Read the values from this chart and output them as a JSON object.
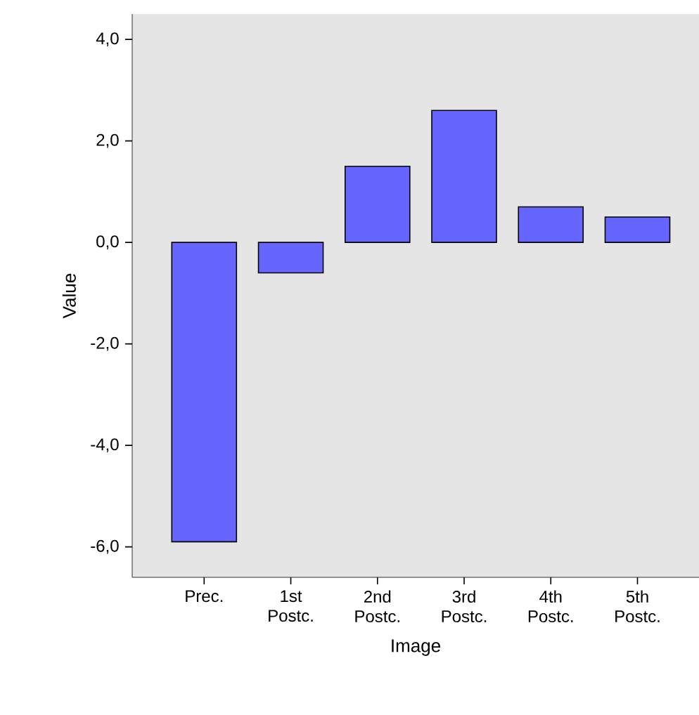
{
  "chart_data": {
    "type": "bar",
    "xlabel": "Image",
    "ylabel": "Value",
    "categories": [
      "Prec.",
      "1st Postc.",
      "2nd Postc.",
      "3rd Postc.",
      "4th Postc.",
      "5th Postc."
    ],
    "values": [
      -5.9,
      -0.6,
      1.5,
      2.6,
      0.7,
      0.5
    ],
    "color": "#6666ff",
    "ylim": [
      -6.6,
      4.5
    ],
    "yticks": [
      {
        "value": -6,
        "label": "-6,0"
      },
      {
        "value": -4,
        "label": "-4,0"
      },
      {
        "value": -2,
        "label": "-2,0"
      },
      {
        "value": 0,
        "label": "0,0"
      },
      {
        "value": 2,
        "label": "2,0"
      },
      {
        "value": 4,
        "label": "4,0"
      }
    ],
    "grid": false
  }
}
